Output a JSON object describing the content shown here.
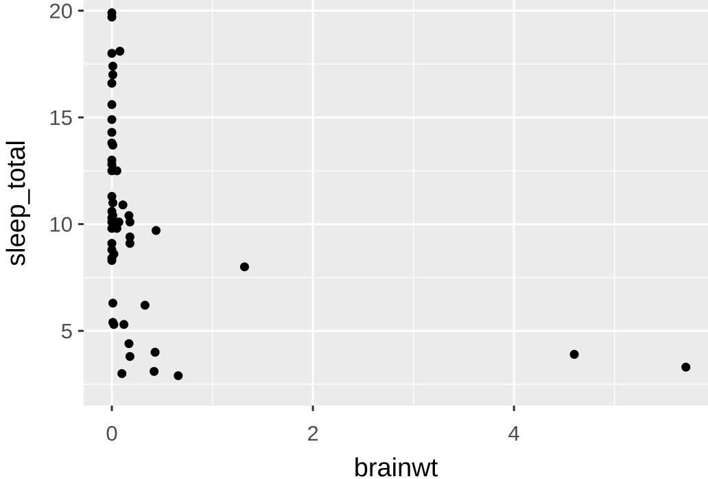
{
  "chart_data": {
    "type": "scatter",
    "xlabel": "brainwt",
    "ylabel": "sleep_total",
    "xlim": [
      -0.28,
      5.93
    ],
    "ylim": [
      1.5,
      20.5
    ],
    "x_ticks": [
      0,
      2,
      4
    ],
    "x_tick_labels": [
      "0",
      "2",
      "4"
    ],
    "x_minor_ticks": [
      1,
      3,
      5
    ],
    "y_ticks": [
      5,
      10,
      15,
      20
    ],
    "y_tick_labels": [
      "5",
      "10",
      "15",
      "20"
    ],
    "y_minor_ticks": [
      2.5,
      7.5,
      12.5,
      17.5
    ],
    "grid": true,
    "colors": {
      "panel": "#ebebeb",
      "grid": "#ffffff",
      "point": "#000000",
      "tick": "#333333",
      "tick_label": "#4d4d4d"
    },
    "points": [
      {
        "x": 0.0,
        "y": 19.9
      },
      {
        "x": 0.0,
        "y": 19.7
      },
      {
        "x": 0.0,
        "y": 18.0
      },
      {
        "x": 0.08,
        "y": 18.1
      },
      {
        "x": 0.01,
        "y": 17.4
      },
      {
        "x": 0.01,
        "y": 17.0
      },
      {
        "x": 0.0,
        "y": 16.6
      },
      {
        "x": 0.0,
        "y": 15.6
      },
      {
        "x": 0.0,
        "y": 14.9
      },
      {
        "x": 0.0,
        "y": 14.3
      },
      {
        "x": 0.0,
        "y": 13.8
      },
      {
        "x": 0.01,
        "y": 13.7
      },
      {
        "x": 0.0,
        "y": 13.0
      },
      {
        "x": 0.0,
        "y": 12.8
      },
      {
        "x": 0.0,
        "y": 12.5
      },
      {
        "x": 0.05,
        "y": 12.5
      },
      {
        "x": 0.0,
        "y": 11.3
      },
      {
        "x": 0.01,
        "y": 11.0
      },
      {
        "x": 0.11,
        "y": 10.9
      },
      {
        "x": 0.0,
        "y": 10.6
      },
      {
        "x": 0.01,
        "y": 10.4
      },
      {
        "x": 0.17,
        "y": 10.4
      },
      {
        "x": 0.0,
        "y": 10.3
      },
      {
        "x": 0.0,
        "y": 10.1
      },
      {
        "x": 0.07,
        "y": 10.1
      },
      {
        "x": 0.18,
        "y": 10.1
      },
      {
        "x": 0.0,
        "y": 9.8
      },
      {
        "x": 0.05,
        "y": 9.8
      },
      {
        "x": 0.44,
        "y": 9.7
      },
      {
        "x": 0.18,
        "y": 9.4
      },
      {
        "x": 0.0,
        "y": 9.1
      },
      {
        "x": 0.18,
        "y": 9.1
      },
      {
        "x": 0.0,
        "y": 8.8
      },
      {
        "x": 0.02,
        "y": 8.6
      },
      {
        "x": 0.0,
        "y": 8.4
      },
      {
        "x": 0.0,
        "y": 8.3
      },
      {
        "x": 1.32,
        "y": 8.0
      },
      {
        "x": 0.01,
        "y": 6.3
      },
      {
        "x": 0.33,
        "y": 6.2
      },
      {
        "x": 0.01,
        "y": 5.4
      },
      {
        "x": 0.02,
        "y": 5.3
      },
      {
        "x": 0.12,
        "y": 5.3
      },
      {
        "x": 0.17,
        "y": 4.4
      },
      {
        "x": 0.43,
        "y": 4.0
      },
      {
        "x": 4.6,
        "y": 3.9
      },
      {
        "x": 0.18,
        "y": 3.8
      },
      {
        "x": 5.71,
        "y": 3.3
      },
      {
        "x": 0.42,
        "y": 3.1
      },
      {
        "x": 0.1,
        "y": 3.0
      },
      {
        "x": 0.66,
        "y": 2.9
      }
    ]
  }
}
